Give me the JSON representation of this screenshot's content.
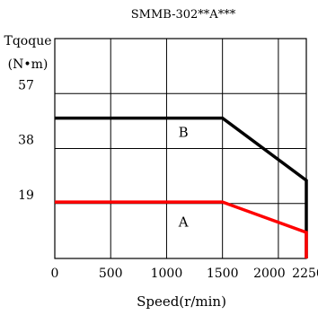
{
  "chart_data": {
    "type": "line",
    "title": "SMMB-302**A***",
    "ylabel_line1": "Tqoque",
    "ylabel_line2": "(N•m)",
    "xlabel": "Speed(r/min)",
    "xlim": [
      0,
      2250
    ],
    "ylim": [
      0,
      76
    ],
    "x_ticks": [
      0,
      500,
      1000,
      1500,
      2000,
      2250
    ],
    "x_tick_labels": [
      "0",
      "500",
      "1000",
      "1500",
      "2000",
      "2250"
    ],
    "y_ticks": [
      19,
      38,
      57
    ],
    "y_tick_labels": [
      "19",
      "38",
      "57"
    ],
    "grid": true,
    "series": [
      {
        "name": "B",
        "color": "#000000",
        "x": [
          0,
          1500,
          2250,
          2250
        ],
        "y": [
          48.5,
          48.5,
          27,
          0
        ]
      },
      {
        "name": "A",
        "color": "#ff0000",
        "x": [
          0,
          1500,
          2250,
          2250
        ],
        "y": [
          19.5,
          19.5,
          9,
          0
        ]
      }
    ],
    "region_labels": [
      {
        "text": "B",
        "x": 1150,
        "y": 42
      },
      {
        "text": "A",
        "x": 1150,
        "y": 11
      }
    ]
  }
}
